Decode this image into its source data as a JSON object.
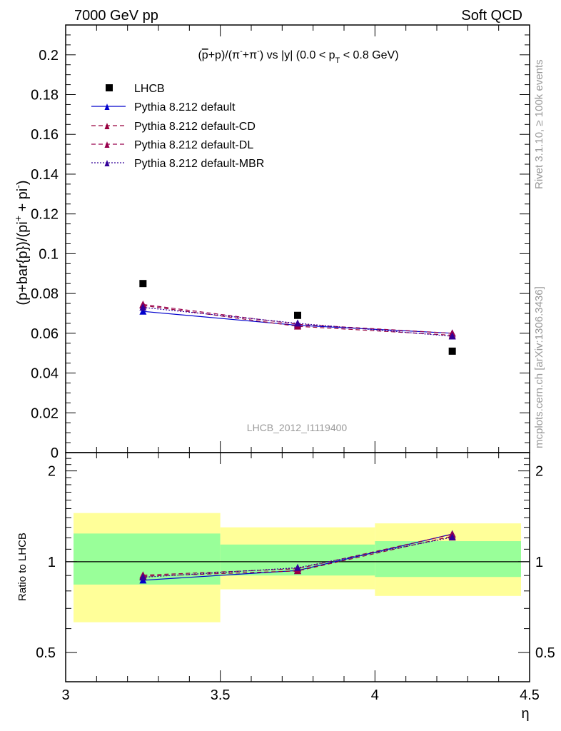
{
  "header": {
    "left": "7000 GeV pp",
    "right": "Soft QCD"
  },
  "side_labels": {
    "rivet": "Rivet 3.1.10, ≥ 100k events",
    "mcplots": "mcplots.cern.ch [arXiv:1306.3436]"
  },
  "colors": {
    "lhcb": "#000000",
    "default": "#0000cc",
    "default_cd": "#99003d",
    "default_dl": "#99004d",
    "default_mbr": "#330099",
    "band_yellow": "#ffff99",
    "band_green": "#99ff99",
    "watermark": "#999999"
  },
  "chart_data": [
    {
      "type": "scatter",
      "title": "(p̄+p)/(π⁻+π⁺) vs |y| (0.0 < pT < 0.8 GeV)",
      "ylabel": "(p+bar{p})/(pi⁺ + pi⁻)",
      "xlabel": "η",
      "watermark": "LHCB_2012_I1119400",
      "xlim": [
        3.0,
        4.5
      ],
      "ylim": [
        0.0,
        0.215
      ],
      "y_ticks": [
        0,
        0.02,
        0.04,
        0.06,
        0.08,
        0.1,
        0.12,
        0.14,
        0.16,
        0.18,
        0.2
      ],
      "y_tick_labels": [
        "0",
        "0.02",
        "0.04",
        "0.06",
        "0.08",
        "0.1",
        "0.12",
        "0.14",
        "0.16",
        "0.18",
        "0.2"
      ],
      "legend_position": "top-left",
      "x": [
        3.25,
        3.75,
        4.25
      ],
      "series": [
        {
          "name": "LHCB",
          "marker": "square",
          "line": "none",
          "color_key": "lhcb",
          "values": [
            0.085,
            0.069,
            0.051
          ]
        },
        {
          "name": "Pythia 8.212 default",
          "marker": "triangle",
          "line": "solid",
          "color_key": "default",
          "values": [
            0.071,
            0.064,
            0.06
          ]
        },
        {
          "name": "Pythia 8.212 default-CD",
          "marker": "triangle",
          "line": "dashed",
          "color_key": "default_cd",
          "values": [
            0.074,
            0.0635,
            0.059
          ]
        },
        {
          "name": "Pythia 8.212 default-DL",
          "marker": "triangle",
          "line": "dashed",
          "color_key": "default_dl",
          "values": [
            0.0745,
            0.0645,
            0.06
          ]
        },
        {
          "name": "Pythia 8.212 default-MBR",
          "marker": "triangle",
          "line": "dotted",
          "color_key": "default_mbr",
          "values": [
            0.073,
            0.065,
            0.0585
          ]
        }
      ]
    },
    {
      "type": "line",
      "ylabel": "Ratio to LHCB",
      "xlabel": "η",
      "xlim": [
        3.0,
        4.5
      ],
      "ylim": [
        0.4,
        2.3
      ],
      "y_scale": "log",
      "x_ticks": [
        3,
        3.5,
        4,
        4.5
      ],
      "x_tick_labels": [
        "3",
        "3.5",
        "4",
        "4.5"
      ],
      "y_ticks": [
        0.5,
        1,
        2
      ],
      "y_tick_labels": [
        "0.5",
        "1",
        "2"
      ],
      "reference_line": 1,
      "bands": [
        {
          "x_range": [
            3.0,
            3.5
          ],
          "yellow": [
            0.63,
            1.45
          ],
          "green": [
            0.84,
            1.24
          ]
        },
        {
          "x_range": [
            3.5,
            4.0
          ],
          "yellow": [
            0.81,
            1.3
          ],
          "green": [
            0.9,
            1.14
          ]
        },
        {
          "x_range": [
            4.0,
            4.5
          ],
          "yellow": [
            0.77,
            1.34
          ],
          "green": [
            0.89,
            1.17
          ]
        }
      ],
      "x": [
        3.25,
        3.75,
        4.25
      ],
      "series": [
        {
          "name": "Pythia 8.212 default",
          "color_key": "default",
          "line": "solid",
          "values": [
            0.868,
            0.935,
            1.235
          ]
        },
        {
          "name": "Pythia 8.212 default-CD",
          "color_key": "default_cd",
          "line": "dashed",
          "values": [
            0.895,
            0.932,
            1.215
          ]
        },
        {
          "name": "Pythia 8.212 default-DL",
          "color_key": "default_dl",
          "line": "dashed",
          "values": [
            0.902,
            0.948,
            1.232
          ]
        },
        {
          "name": "Pythia 8.212 default-MBR",
          "color_key": "default_mbr",
          "line": "dotted",
          "values": [
            0.888,
            0.955,
            1.205
          ]
        }
      ]
    }
  ]
}
